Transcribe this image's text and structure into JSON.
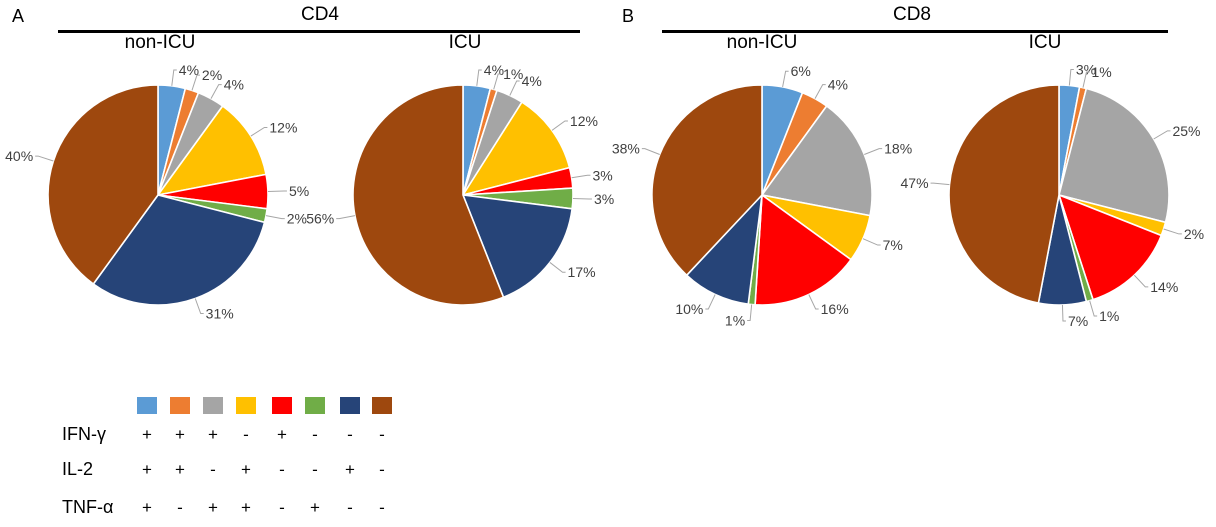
{
  "panels": [
    {
      "letter": "A",
      "title": "CD4"
    },
    {
      "letter": "B",
      "title": "CD8"
    }
  ],
  "chart_data": [
    {
      "type": "pie",
      "panel": "CD4",
      "title": "non-ICU",
      "values": [
        4,
        2,
        4,
        12,
        5,
        2,
        31,
        40
      ],
      "labels": [
        "4%",
        "2%",
        "4%",
        "12%",
        "5%",
        "2%",
        "31%",
        "40%"
      ]
    },
    {
      "type": "pie",
      "panel": "CD4",
      "title": "ICU",
      "values": [
        4,
        1,
        4,
        12,
        3,
        3,
        17,
        56
      ],
      "labels": [
        "4%",
        "1%",
        "4%",
        "12%",
        "3%",
        "3%",
        "17%",
        "56%"
      ]
    },
    {
      "type": "pie",
      "panel": "CD8",
      "title": "non-ICU",
      "values": [
        6,
        4,
        18,
        7,
        16,
        1,
        10,
        38
      ],
      "labels": [
        "6%",
        "4%",
        "18%",
        "7%",
        "16%",
        "1%",
        "10%",
        "38%"
      ]
    },
    {
      "type": "pie",
      "panel": "CD8",
      "title": "ICU",
      "values": [
        3,
        1,
        25,
        2,
        14,
        1,
        7,
        47
      ],
      "labels": [
        "3%",
        "1%",
        "25%",
        "2%",
        "14%",
        "1%",
        "7%",
        "47%"
      ]
    }
  ],
  "legend": {
    "colors": [
      "#5b9bd5",
      "#ed7d31",
      "#a5a5a5",
      "#ffc000",
      "#ff0000",
      "#70ad47",
      "#264478",
      "#9e480e"
    ],
    "rows": [
      {
        "label": "IFN-γ",
        "signs": [
          "+",
          "+",
          "+",
          "-",
          "+",
          "-",
          "-",
          "-"
        ]
      },
      {
        "label": "IL-2",
        "signs": [
          "+",
          "+",
          "-",
          "+",
          "-",
          "-",
          "+",
          "-"
        ]
      },
      {
        "label": "TNF-α",
        "signs": [
          "+",
          "-",
          "+",
          "+",
          "-",
          "+",
          "-",
          "-"
        ]
      }
    ]
  }
}
